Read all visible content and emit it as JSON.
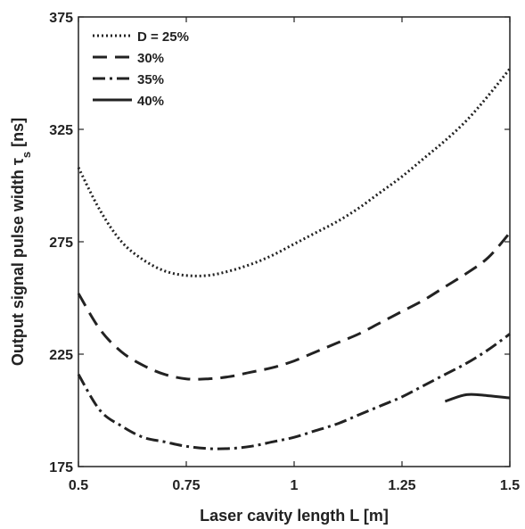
{
  "chart_data": {
    "type": "line",
    "title": "",
    "xlabel": "Laser cavity length L [m]",
    "ylabel_main": "Output signal pulse width τ",
    "ylabel_sub": "s",
    "ylabel_unit": " [ns]",
    "xlim": [
      0.5,
      1.5
    ],
    "ylim": [
      175,
      375
    ],
    "xticks": [
      0.5,
      0.75,
      1,
      1.25,
      1.5
    ],
    "xtick_labels": [
      "0.5",
      "0.75",
      "1",
      "1.25",
      "1.5"
    ],
    "yticks": [
      175,
      225,
      275,
      325,
      375
    ],
    "ytick_labels": [
      "175",
      "225",
      "275",
      "325",
      "375"
    ],
    "grid": false,
    "legend_position": "top-left",
    "series": [
      {
        "name": "D = 25%",
        "dash": "dotted",
        "x": [
          0.5,
          0.55,
          0.6,
          0.65,
          0.7,
          0.75,
          0.8,
          0.85,
          0.9,
          0.95,
          1.0,
          1.05,
          1.1,
          1.15,
          1.2,
          1.25,
          1.3,
          1.35,
          1.4,
          1.45,
          1.5
        ],
        "y": [
          308,
          289,
          275,
          267,
          262,
          260,
          260,
          262,
          265,
          269,
          274,
          279,
          284,
          290,
          297,
          304,
          312,
          320,
          329,
          340,
          352
        ]
      },
      {
        "name": "30%",
        "dash": "dashed",
        "x": [
          0.5,
          0.55,
          0.6,
          0.65,
          0.7,
          0.75,
          0.8,
          0.85,
          0.9,
          0.95,
          1.0,
          1.05,
          1.1,
          1.15,
          1.2,
          1.25,
          1.3,
          1.35,
          1.4,
          1.45,
          1.5
        ],
        "y": [
          252,
          236,
          226,
          220,
          216,
          214,
          214,
          215,
          217,
          219,
          222,
          226,
          230,
          234,
          239,
          244,
          249,
          255,
          261,
          268,
          279
        ]
      },
      {
        "name": "35%",
        "dash": "dashdot",
        "x": [
          0.5,
          0.55,
          0.6,
          0.65,
          0.7,
          0.75,
          0.8,
          0.85,
          0.9,
          0.95,
          1.0,
          1.05,
          1.1,
          1.15,
          1.2,
          1.25,
          1.3,
          1.35,
          1.4,
          1.45,
          1.5
        ],
        "y": [
          216,
          200,
          193,
          188,
          186,
          184,
          183,
          183,
          184,
          186,
          188,
          191,
          194,
          198,
          202,
          206,
          211,
          216,
          221,
          227,
          234
        ]
      },
      {
        "name": "40%",
        "dash": "solid",
        "x": [
          1.35,
          1.4,
          1.45,
          1.5
        ],
        "y": [
          204,
          207,
          206.5,
          205.5
        ]
      }
    ]
  }
}
